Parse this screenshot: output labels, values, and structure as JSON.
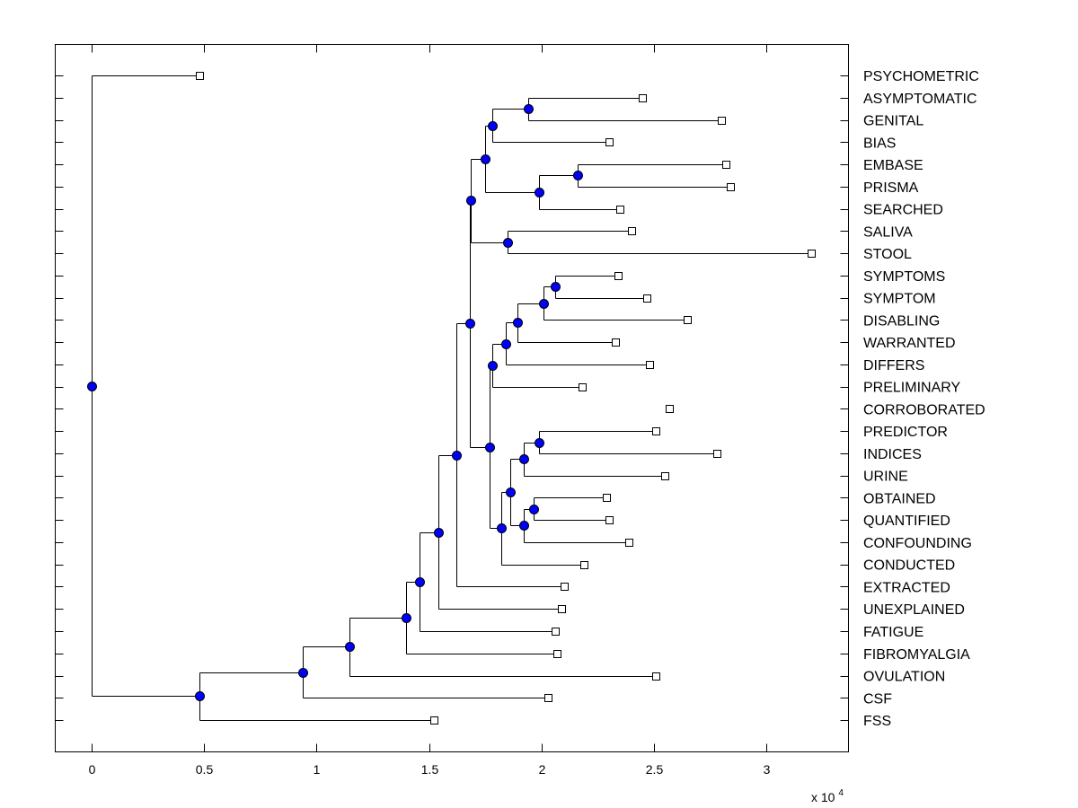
{
  "chart_data": {
    "type": "dendrogram",
    "x_ticks": [
      0,
      0.5,
      1,
      1.5,
      2,
      2.5,
      3
    ],
    "x_ticks_text": [
      "0",
      "0.5",
      "1",
      "1.5",
      "2",
      "2.5",
      "3"
    ],
    "x_multiplier_base": "x 10",
    "x_multiplier_exp": "4",
    "xlim": [
      -0.16,
      3.36
    ],
    "leaves": [
      {
        "name": "PSYCHOMETRIC",
        "x": 0.48
      },
      {
        "name": "ASYMPTOMATIC",
        "x": 2.45
      },
      {
        "name": "GENITAL",
        "x": 2.8
      },
      {
        "name": "BIAS",
        "x": 2.3
      },
      {
        "name": "EMBASE",
        "x": 2.82
      },
      {
        "name": "PRISMA",
        "x": 2.84
      },
      {
        "name": "SEARCHED",
        "x": 2.35
      },
      {
        "name": "SALIVA",
        "x": 2.4
      },
      {
        "name": "STOOL",
        "x": 3.2
      },
      {
        "name": "SYMPTOMS",
        "x": 2.34
      },
      {
        "name": "SYMPTOM",
        "x": 2.47
      },
      {
        "name": "DISABLING",
        "x": 2.65
      },
      {
        "name": "WARRANTED",
        "x": 2.33
      },
      {
        "name": "DIFFERS",
        "x": 2.48
      },
      {
        "name": "PRELIMINARY",
        "x": 2.18
      },
      {
        "name": "CORROBORATED",
        "x": 2.57
      },
      {
        "name": "PREDICTOR",
        "x": 2.51
      },
      {
        "name": "INDICES",
        "x": 2.78
      },
      {
        "name": "URINE",
        "x": 2.55
      },
      {
        "name": "OBTAINED",
        "x": 2.29
      },
      {
        "name": "QUANTIFIED",
        "x": 2.3
      },
      {
        "name": "CONFOUNDING",
        "x": 2.39
      },
      {
        "name": "CONDUCTED",
        "x": 2.19
      },
      {
        "name": "EXTRACTED",
        "x": 2.1
      },
      {
        "name": "UNEXPLAINED",
        "x": 2.09
      },
      {
        "name": "FATIGUE",
        "x": 2.06
      },
      {
        "name": "FIBROMYALGIA",
        "x": 2.07
      },
      {
        "name": "OVULATION",
        "x": 2.51
      },
      {
        "name": "CSF",
        "x": 2.03
      },
      {
        "name": "FSS",
        "x": 1.52
      }
    ],
    "merges": [
      {
        "id": "n1",
        "x": 1.94,
        "children": [
          "L1",
          "L2"
        ]
      },
      {
        "id": "n2",
        "x": 1.78,
        "children": [
          "n1",
          "L3"
        ]
      },
      {
        "id": "n3",
        "x": 2.16,
        "children": [
          "L4",
          "L5"
        ]
      },
      {
        "id": "n4",
        "x": 1.99,
        "children": [
          "n3",
          "L6"
        ]
      },
      {
        "id": "n5",
        "x": 1.75,
        "children": [
          "n2",
          "n4"
        ]
      },
      {
        "id": "n6",
        "x": 1.85,
        "children": [
          "L7",
          "L8"
        ]
      },
      {
        "id": "n7",
        "x": 1.685,
        "children": [
          "n5",
          "n6"
        ]
      },
      {
        "id": "n8",
        "x": 2.06,
        "children": [
          "L9",
          "L10"
        ]
      },
      {
        "id": "n9",
        "x": 2.01,
        "children": [
          "n8",
          "L11"
        ]
      },
      {
        "id": "n10",
        "x": 1.895,
        "children": [
          "n9",
          "L12"
        ]
      },
      {
        "id": "n11",
        "x": 1.84,
        "children": [
          "n10",
          "L13"
        ]
      },
      {
        "id": "n12",
        "x": 1.78,
        "children": [
          "n11",
          "L14"
        ]
      },
      {
        "id": "n13",
        "x": 1.99,
        "children": [
          "L16",
          "L17"
        ]
      },
      {
        "id": "n14",
        "x": 1.92,
        "children": [
          "n13",
          "L18"
        ]
      },
      {
        "id": "n15",
        "x": 1.965,
        "children": [
          "L19",
          "L20"
        ]
      },
      {
        "id": "n16",
        "x": 1.92,
        "children": [
          "n15",
          "L21"
        ]
      },
      {
        "id": "n17",
        "x": 1.86,
        "children": [
          "n14",
          "n16"
        ]
      },
      {
        "id": "n18",
        "x": 1.82,
        "children": [
          "n17",
          "L22"
        ]
      },
      {
        "id": "n19",
        "x": 1.77,
        "children": [
          "n12",
          "n18"
        ]
      },
      {
        "id": "n20",
        "x": 1.68,
        "children": [
          "n7",
          "n19"
        ]
      },
      {
        "id": "n21",
        "x": 1.62,
        "children": [
          "n20",
          "L23"
        ]
      },
      {
        "id": "n22",
        "x": 1.54,
        "children": [
          "n21",
          "L24"
        ]
      },
      {
        "id": "n23",
        "x": 1.46,
        "children": [
          "n22",
          "L25"
        ]
      },
      {
        "id": "n24",
        "x": 1.4,
        "children": [
          "n23",
          "L26"
        ]
      },
      {
        "id": "n25",
        "x": 1.145,
        "children": [
          "n24",
          "L27"
        ]
      },
      {
        "id": "n26",
        "x": 0.94,
        "children": [
          "n25",
          "L28"
        ]
      },
      {
        "id": "n27",
        "x": 0.48,
        "children": [
          "n26",
          "L29"
        ]
      },
      {
        "id": "n28",
        "x": 0.0,
        "children": [
          "L0",
          "n27"
        ]
      }
    ]
  },
  "colors": {
    "node_fill": "#0000ff",
    "leaf_fill": "#ffffff",
    "line": "#000000",
    "background": "#ffffff"
  }
}
